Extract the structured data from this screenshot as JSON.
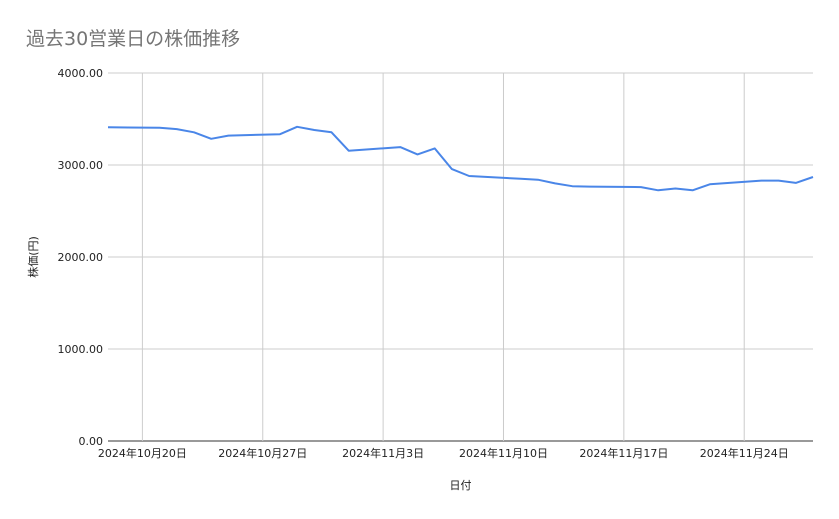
{
  "chart_data": {
    "type": "line",
    "title": "過去30営業日の株価推移",
    "xlabel": "日付",
    "ylabel": "株価(円)",
    "ylim": [
      0,
      4000
    ],
    "yticks": [
      "0.00",
      "1000.00",
      "2000.00",
      "3000.00",
      "4000.00"
    ],
    "grid": true,
    "legend": "none",
    "line_color": "#4a86e8",
    "xlim": [
      "2024-10-18",
      "2024-11-28"
    ],
    "xticks": [
      {
        "date": "2024-10-20",
        "label": "2024年10月20日"
      },
      {
        "date": "2024-10-27",
        "label": "2024年10月27日"
      },
      {
        "date": "2024-11-03",
        "label": "2024年11月3日"
      },
      {
        "date": "2024-11-10",
        "label": "2024年11月10日"
      },
      {
        "date": "2024-11-17",
        "label": "2024年11月17日"
      },
      {
        "date": "2024-11-24",
        "label": "2024年11月24日"
      }
    ],
    "x": [
      "2024-10-18",
      "2024-10-21",
      "2024-10-22",
      "2024-10-23",
      "2024-10-24",
      "2024-10-25",
      "2024-10-28",
      "2024-10-29",
      "2024-10-30",
      "2024-10-31",
      "2024-11-01",
      "2024-11-04",
      "2024-11-05",
      "2024-11-06",
      "2024-11-07",
      "2024-11-08",
      "2024-11-11",
      "2024-11-12",
      "2024-11-13",
      "2024-11-14",
      "2024-11-15",
      "2024-11-18",
      "2024-11-19",
      "2024-11-20",
      "2024-11-21",
      "2024-11-22",
      "2024-11-25",
      "2024-11-26",
      "2024-11-27",
      "2024-11-28"
    ],
    "values": [
      3410,
      3405,
      3390,
      3355,
      3285,
      3320,
      3335,
      3415,
      3380,
      3355,
      3155,
      3195,
      3115,
      3180,
      2955,
      2880,
      2850,
      2840,
      2800,
      2770,
      2765,
      2760,
      2725,
      2745,
      2725,
      2790,
      2830,
      2830,
      2805,
      2870
    ]
  }
}
